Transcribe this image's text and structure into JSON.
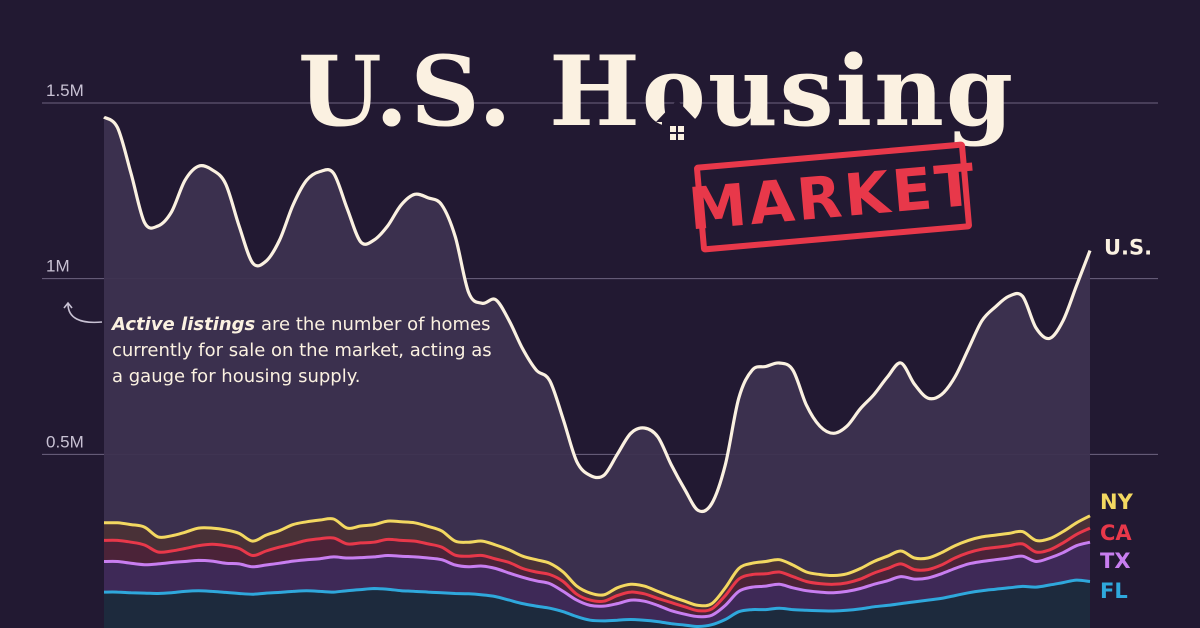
{
  "title": {
    "main": "U.S. Housing",
    "stamp": "MARKET"
  },
  "annotation": {
    "bold": "Active listings",
    "rest": " are the number of homes currently for sale on the market, acting as a gauge for housing supply."
  },
  "chart_data": {
    "type": "area",
    "title": "U.S. Housing MARKET",
    "xlabel": "",
    "ylabel": "",
    "ylim": [
      0,
      1500000
    ],
    "yticks": [
      {
        "value": 500000,
        "label": "0.5M"
      },
      {
        "value": 1000000,
        "label": "1M"
      },
      {
        "value": 1500000,
        "label": "1.5M"
      }
    ],
    "grid": true,
    "series": [
      {
        "name": "U.S.",
        "color": "#fbf1e1",
        "values": [
          1460000,
          1430000,
          1300000,
          1160000,
          1150000,
          1190000,
          1280000,
          1320000,
          1310000,
          1270000,
          1150000,
          1045000,
          1050000,
          1110000,
          1210000,
          1280000,
          1305000,
          1300000,
          1200000,
          1105000,
          1110000,
          1150000,
          1210000,
          1240000,
          1230000,
          1210000,
          1120000,
          960000,
          930000,
          940000,
          880000,
          800000,
          740000,
          710000,
          600000,
          480000,
          440000,
          440000,
          500000,
          560000,
          575000,
          550000,
          470000,
          400000,
          340000,
          360000,
          470000,
          660000,
          740000,
          750000,
          760000,
          740000,
          640000,
          580000,
          560000,
          580000,
          630000,
          670000,
          720000,
          760000,
          700000,
          660000,
          670000,
          720000,
          800000,
          880000,
          920000,
          950000,
          950000,
          860000,
          830000,
          880000,
          980000,
          1080000
        ]
      },
      {
        "name": "NY",
        "color": "#f3d861",
        "values": [
          305000,
          305000,
          300000,
          293000,
          265000,
          268000,
          278000,
          290000,
          290000,
          285000,
          275000,
          253000,
          270000,
          283000,
          300000,
          308000,
          313000,
          316000,
          290000,
          296000,
          300000,
          310000,
          308000,
          305000,
          295000,
          282000,
          253000,
          250000,
          253000,
          242000,
          228000,
          210000,
          200000,
          190000,
          165000,
          125000,
          105000,
          100000,
          120000,
          130000,
          125000,
          110000,
          95000,
          82000,
          70000,
          75000,
          120000,
          175000,
          190000,
          195000,
          200000,
          185000,
          165000,
          158000,
          155000,
          160000,
          175000,
          195000,
          210000,
          225000,
          205000,
          205000,
          220000,
          240000,
          255000,
          265000,
          270000,
          275000,
          280000,
          255000,
          260000,
          280000,
          305000,
          325000
        ]
      },
      {
        "name": "CA",
        "color": "#e8384a",
        "values": [
          255000,
          255000,
          250000,
          242000,
          222000,
          225000,
          232000,
          240000,
          244000,
          240000,
          232000,
          212000,
          225000,
          236000,
          245000,
          255000,
          260000,
          262000,
          245000,
          248000,
          250000,
          258000,
          255000,
          253000,
          245000,
          236000,
          213000,
          210000,
          212000,
          202000,
          192000,
          175000,
          165000,
          158000,
          138000,
          102000,
          85000,
          82000,
          98000,
          108000,
          103000,
          90000,
          78000,
          66000,
          55000,
          60000,
          98000,
          145000,
          158000,
          160000,
          165000,
          152000,
          138000,
          132000,
          130000,
          134000,
          145000,
          162000,
          175000,
          188000,
          172000,
          172000,
          185000,
          205000,
          220000,
          230000,
          235000,
          240000,
          245000,
          222000,
          228000,
          248000,
          272000,
          290000
        ]
      },
      {
        "name": "TX",
        "color": "#c87ef0",
        "values": [
          195000,
          195000,
          190000,
          186000,
          188000,
          192000,
          195000,
          198000,
          196000,
          190000,
          188000,
          180000,
          185000,
          190000,
          196000,
          200000,
          203000,
          208000,
          205000,
          206000,
          208000,
          212000,
          210000,
          208000,
          205000,
          200000,
          185000,
          180000,
          182000,
          175000,
          162000,
          150000,
          140000,
          132000,
          110000,
          85000,
          70000,
          68000,
          75000,
          85000,
          82000,
          70000,
          55000,
          45000,
          38000,
          42000,
          70000,
          110000,
          122000,
          125000,
          130000,
          120000,
          112000,
          108000,
          106000,
          110000,
          118000,
          130000,
          140000,
          152000,
          145000,
          148000,
          160000,
          175000,
          188000,
          195000,
          200000,
          205000,
          210000,
          195000,
          205000,
          220000,
          240000,
          250000
        ]
      },
      {
        "name": "FL",
        "color": "#2fa8dc",
        "values": [
          108000,
          108000,
          106000,
          105000,
          104000,
          106000,
          110000,
          112000,
          110000,
          107000,
          104000,
          102000,
          105000,
          107000,
          110000,
          112000,
          110000,
          108000,
          112000,
          115000,
          118000,
          116000,
          112000,
          110000,
          108000,
          106000,
          104000,
          103000,
          100000,
          95000,
          85000,
          75000,
          68000,
          62000,
          52000,
          38000,
          28000,
          26000,
          28000,
          30000,
          28000,
          24000,
          18000,
          14000,
          10000,
          15000,
          30000,
          52000,
          58000,
          58000,
          62000,
          58000,
          56000,
          55000,
          54000,
          56000,
          60000,
          66000,
          70000,
          75000,
          80000,
          85000,
          90000,
          98000,
          106000,
          112000,
          116000,
          120000,
          124000,
          122000,
          128000,
          135000,
          142000,
          138000
        ]
      }
    ]
  }
}
